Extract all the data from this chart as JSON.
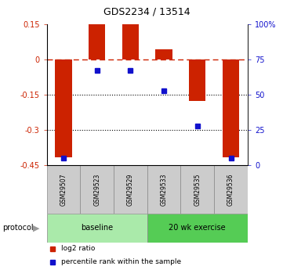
{
  "title": "GDS2234 / 13514",
  "samples": [
    "GSM29507",
    "GSM29523",
    "GSM29529",
    "GSM29533",
    "GSM29535",
    "GSM29536"
  ],
  "log2_ratios": [
    -0.415,
    0.15,
    0.15,
    0.045,
    -0.175,
    -0.415
  ],
  "percentile_ranks": [
    5,
    67,
    67,
    53,
    28,
    5
  ],
  "groups": [
    "baseline",
    "baseline",
    "baseline",
    "20 wk exercise",
    "20 wk exercise",
    "20 wk exercise"
  ],
  "ylim_left": [
    -0.45,
    0.15
  ],
  "ylim_right": [
    0,
    100
  ],
  "yticks_left": [
    0.15,
    0,
    -0.15,
    -0.3,
    -0.45
  ],
  "yticks_right": [
    100,
    75,
    50,
    25,
    0
  ],
  "bar_color": "#cc2200",
  "dot_color": "#1111cc",
  "background_color": "#ffffff",
  "group_colors": {
    "baseline": "#aaeaaa",
    "20 wk exercise": "#55cc55"
  },
  "sample_box_color": "#cccccc",
  "protocol_label": "protocol",
  "legend_items": [
    "log2 ratio",
    "percentile rank within the sample"
  ]
}
